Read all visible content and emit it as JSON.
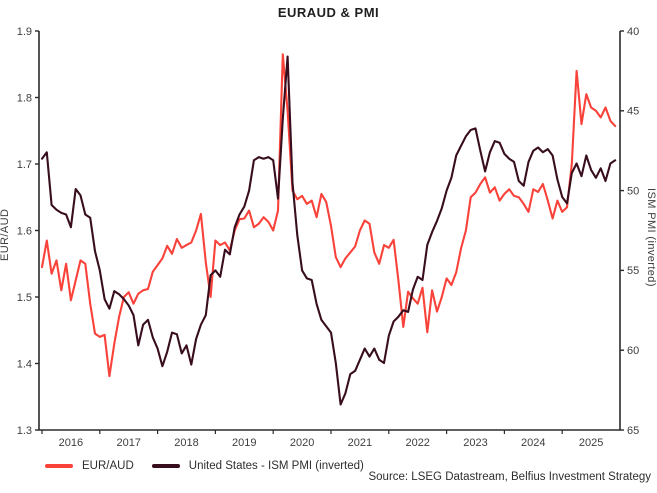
{
  "title": "EURAUD & PMI",
  "source_note": "Source: LSEG Datastream, Belfius Investment Strategy",
  "colors": {
    "euraud": "#f9423a",
    "pmi": "#380e1f",
    "axis_line": "#2b2b2b",
    "tick_text": "#3e3e3e"
  },
  "legend": [
    {
      "label": "EUR/AUD",
      "color": "#f9423a"
    },
    {
      "label": "United States - ISM PMI (inverted)",
      "color": "#380e1f"
    }
  ],
  "chart_data": {
    "type": "line",
    "title": "EURAUD & PMI",
    "grid": false,
    "legend_position": "bottom-left",
    "x_axis": {
      "start": "2016-01",
      "end": "2025-12",
      "frequency": "monthly",
      "tick_labels": [
        "2016",
        "2017",
        "2018",
        "2019",
        "2020",
        "2021",
        "2022",
        "2023",
        "2024",
        "2025"
      ]
    },
    "left_axis": {
      "label": "EUR/AUD",
      "min": 1.3,
      "max": 1.9,
      "ticks": [
        1.9,
        1.8,
        1.7,
        1.6,
        1.5,
        1.4,
        1.3
      ],
      "decimals": 1
    },
    "right_axis": {
      "label": "ISM PMI (inverted)",
      "min": 40,
      "max": 65,
      "inverted": true,
      "ticks": [
        40,
        45,
        50,
        55,
        60,
        65
      ],
      "decimals": 0
    },
    "series": [
      {
        "name": "EUR/AUD",
        "axis": "left",
        "color": "#f9423a",
        "values": [
          1.545,
          1.585,
          1.535,
          1.555,
          1.51,
          1.55,
          1.495,
          1.525,
          1.555,
          1.55,
          1.49,
          1.445,
          1.44,
          1.443,
          1.381,
          1.43,
          1.47,
          1.5,
          1.507,
          1.49,
          1.505,
          1.51,
          1.512,
          1.538,
          1.548,
          1.558,
          1.577,
          1.565,
          1.587,
          1.574,
          1.578,
          1.582,
          1.6,
          1.625,
          1.552,
          1.5,
          1.585,
          1.578,
          1.582,
          1.57,
          1.6,
          1.617,
          1.618,
          1.63,
          1.605,
          1.61,
          1.62,
          1.613,
          1.6,
          1.63,
          1.865,
          1.78,
          1.66,
          1.647,
          1.652,
          1.64,
          1.645,
          1.62,
          1.655,
          1.643,
          1.607,
          1.56,
          1.545,
          1.558,
          1.567,
          1.576,
          1.6,
          1.615,
          1.61,
          1.567,
          1.55,
          1.578,
          1.574,
          1.586,
          1.525,
          1.455,
          1.508,
          1.498,
          1.49,
          1.514,
          1.447,
          1.51,
          1.478,
          1.5,
          1.528,
          1.518,
          1.537,
          1.573,
          1.6,
          1.65,
          1.657,
          1.67,
          1.68,
          1.657,
          1.665,
          1.645,
          1.655,
          1.662,
          1.652,
          1.65,
          1.64,
          1.628,
          1.662,
          1.658,
          1.67,
          1.645,
          1.618,
          1.645,
          1.628,
          1.635,
          1.7,
          1.84,
          1.76,
          1.805,
          1.785,
          1.78,
          1.77,
          1.785,
          1.765,
          1.757
        ]
      },
      {
        "name": "United States - ISM PMI (inverted)",
        "axis": "right",
        "color": "#380e1f",
        "values": [
          48.0,
          47.6,
          50.9,
          51.2,
          51.4,
          51.5,
          52.3,
          49.9,
          50.3,
          51.5,
          51.7,
          53.8,
          55.0,
          56.8,
          57.4,
          56.3,
          56.5,
          56.8,
          57.2,
          57.8,
          59.7,
          58.4,
          58.1,
          59.2,
          59.9,
          61.0,
          60.1,
          58.9,
          59.0,
          60.2,
          59.7,
          60.9,
          59.3,
          58.4,
          57.8,
          55.3,
          55.0,
          55.4,
          53.7,
          54.0,
          52.3,
          51.5,
          51.0,
          50.0,
          48.1,
          47.9,
          48.0,
          47.9,
          48.1,
          50.5,
          45.5,
          41.6,
          49.5,
          52.8,
          55.0,
          55.5,
          55.6,
          57.1,
          58.1,
          58.5,
          58.9,
          60.8,
          63.4,
          62.7,
          61.5,
          61.3,
          60.6,
          59.9,
          60.4,
          59.9,
          60.6,
          60.8,
          59.1,
          58.2,
          57.9,
          57.5,
          57.6,
          56.2,
          55.4,
          55.6,
          53.4,
          52.6,
          51.9,
          51.1,
          50.0,
          49.2,
          47.8,
          47.2,
          46.6,
          46.2,
          46.1,
          47.5,
          48.8,
          47.6,
          46.9,
          47.0,
          47.7,
          48.0,
          48.2,
          49.4,
          49.7,
          48.2,
          47.5,
          47.3,
          47.6,
          47.4,
          47.8,
          49.3,
          50.4,
          50.8,
          48.9,
          48.3,
          49.1,
          47.8,
          48.7,
          49.2,
          48.6,
          49.4,
          48.3,
          48.1
        ]
      }
    ]
  }
}
